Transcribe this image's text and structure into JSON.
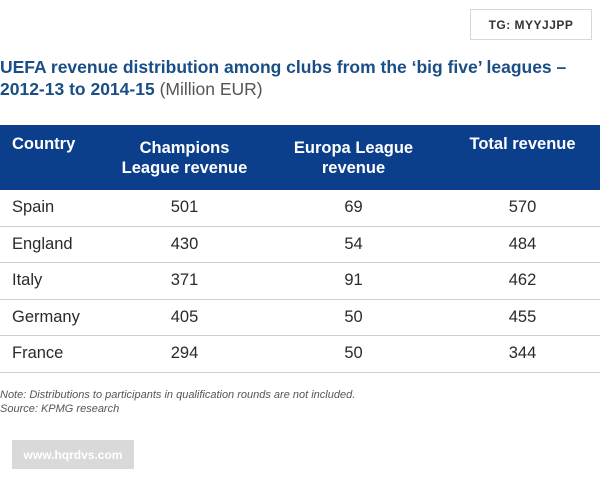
{
  "badge": "TG: MYYJJPP",
  "chart_data": {
    "type": "table",
    "title": "UEFA revenue distribution among clubs from the ‘big five’ leagues – 2012-13 to 2014-15",
    "unit": "(Million EUR)",
    "columns": [
      [
        "Country"
      ],
      [
        "Champions",
        "League revenue"
      ],
      [
        "Europa League",
        "revenue"
      ],
      [
        "Total revenue"
      ]
    ],
    "rows": [
      [
        "Spain",
        "501",
        "69",
        "570"
      ],
      [
        "England",
        "430",
        "54",
        "484"
      ],
      [
        "Italy",
        "371",
        "91",
        "462"
      ],
      [
        "Germany",
        "405",
        "50",
        "455"
      ],
      [
        "France",
        "294",
        "50",
        "344"
      ]
    ],
    "note": "Note: Distributions to participants in qualification rounds are not included.",
    "source": "Source: KPMG research"
  },
  "watermark": "www.hqrdvs.com",
  "colors": {
    "header_bg": "#0b3f8c",
    "title": "#1a4e86",
    "row_rule": "#c6cfda"
  }
}
